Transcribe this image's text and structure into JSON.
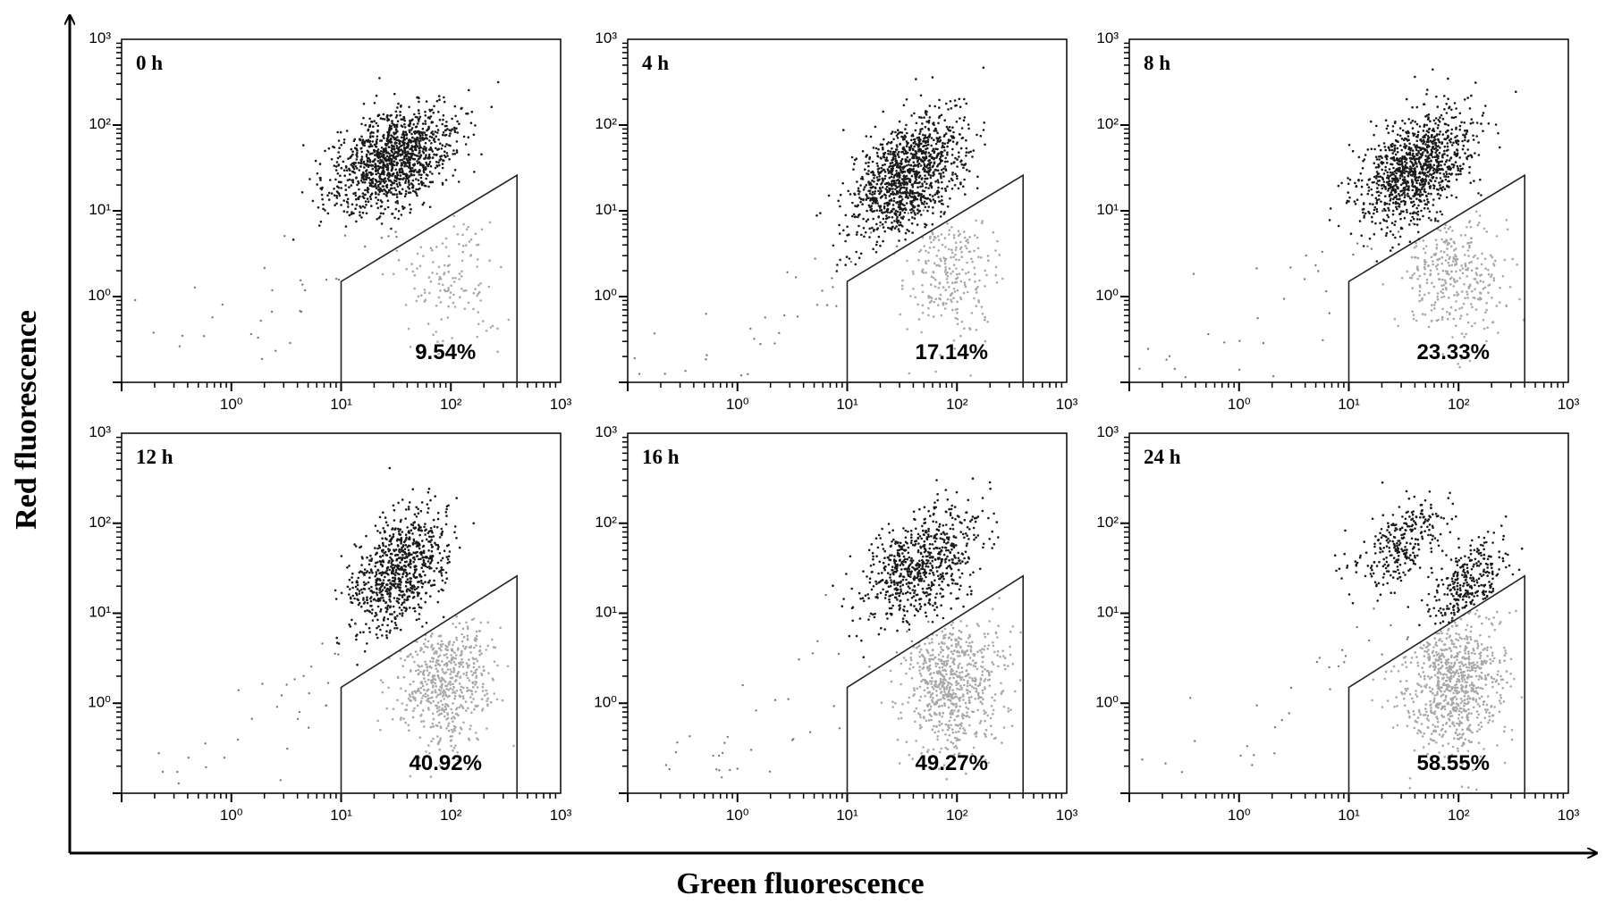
{
  "xlabel": "Green fluorescence",
  "ylabel": "Red fluorescence",
  "chart_data": [
    {
      "type": "scatter",
      "title": "0 h",
      "gate_percent_label": "9.54%",
      "gate_fraction": 0.0954,
      "xscale": "log",
      "yscale": "log",
      "xlim": [
        0.1,
        1000
      ],
      "ylim": [
        0.1,
        1000
      ],
      "xticks": [
        "10^0",
        "10^1",
        "10^2",
        "10^3"
      ],
      "yticks": [
        "10^0",
        "10^1",
        "10^2",
        "10^3"
      ],
      "populations": [
        {
          "shade": "dark",
          "center": [
            30,
            40
          ],
          "spread_decades": [
            0.28,
            0.3
          ]
        }
      ],
      "gate_vertices": [
        [
          10,
          1.5
        ],
        [
          10,
          0.1
        ],
        [
          400,
          0.1
        ],
        [
          400,
          26
        ]
      ]
    },
    {
      "type": "scatter",
      "title": "4 h",
      "gate_percent_label": "17.14%",
      "gate_fraction": 0.1714,
      "xscale": "log",
      "yscale": "log",
      "xlim": [
        0.1,
        1000
      ],
      "ylim": [
        0.1,
        1000
      ],
      "xticks": [
        "10^0",
        "10^1",
        "10^2",
        "10^3"
      ],
      "yticks": [
        "10^0",
        "10^1",
        "10^2",
        "10^3"
      ],
      "populations": [
        {
          "shade": "dark",
          "center": [
            35,
            25
          ],
          "spread_decades": [
            0.25,
            0.35
          ]
        }
      ],
      "gate_vertices": [
        [
          10,
          1.5
        ],
        [
          10,
          0.1
        ],
        [
          400,
          0.1
        ],
        [
          400,
          26
        ]
      ]
    },
    {
      "type": "scatter",
      "title": "8 h",
      "gate_percent_label": "23.33%",
      "gate_fraction": 0.2333,
      "xscale": "log",
      "yscale": "log",
      "xlim": [
        0.1,
        1000
      ],
      "ylim": [
        0.1,
        1000
      ],
      "xticks": [
        "10^0",
        "10^1",
        "10^2",
        "10^3"
      ],
      "yticks": [
        "10^0",
        "10^1",
        "10^2",
        "10^3"
      ],
      "populations": [
        {
          "shade": "dark",
          "center": [
            40,
            30
          ],
          "spread_decades": [
            0.25,
            0.33
          ]
        }
      ],
      "gate_vertices": [
        [
          10,
          1.5
        ],
        [
          10,
          0.1
        ],
        [
          400,
          0.1
        ],
        [
          400,
          26
        ]
      ]
    },
    {
      "type": "scatter",
      "title": "12 h",
      "gate_percent_label": "40.92%",
      "gate_fraction": 0.4092,
      "xscale": "log",
      "yscale": "log",
      "xlim": [
        0.1,
        1000
      ],
      "ylim": [
        0.1,
        1000
      ],
      "xticks": [
        "10^0",
        "10^1",
        "10^2",
        "10^3"
      ],
      "yticks": [
        "10^0",
        "10^1",
        "10^2",
        "10^3"
      ],
      "populations": [
        {
          "shade": "dark",
          "center": [
            35,
            30
          ],
          "spread_decades": [
            0.22,
            0.33
          ]
        }
      ],
      "gate_vertices": [
        [
          10,
          1.5
        ],
        [
          10,
          0.1
        ],
        [
          400,
          0.1
        ],
        [
          400,
          26
        ]
      ]
    },
    {
      "type": "scatter",
      "title": "16 h",
      "gate_percent_label": "49.27%",
      "gate_fraction": 0.4927,
      "xscale": "log",
      "yscale": "log",
      "xlim": [
        0.1,
        1000
      ],
      "ylim": [
        0.1,
        1000
      ],
      "xticks": [
        "10^0",
        "10^1",
        "10^2",
        "10^3"
      ],
      "yticks": [
        "10^0",
        "10^1",
        "10^2",
        "10^3"
      ],
      "populations": [
        {
          "shade": "dark",
          "center": [
            45,
            35
          ],
          "spread_decades": [
            0.27,
            0.33
          ]
        }
      ],
      "gate_vertices": [
        [
          10,
          1.5
        ],
        [
          10,
          0.1
        ],
        [
          400,
          0.1
        ],
        [
          400,
          26
        ]
      ]
    },
    {
      "type": "scatter",
      "title": "24 h",
      "gate_percent_label": "58.55%",
      "gate_fraction": 0.5855,
      "xscale": "log",
      "yscale": "log",
      "xlim": [
        0.1,
        1000
      ],
      "ylim": [
        0.1,
        1000
      ],
      "xticks": [
        "10^0",
        "10^1",
        "10^2",
        "10^3"
      ],
      "yticks": [
        "10^0",
        "10^1",
        "10^2",
        "10^3"
      ],
      "populations": [
        {
          "shade": "dark",
          "center": [
            30,
            60
          ],
          "spread_decades": [
            0.2,
            0.25
          ]
        },
        {
          "shade": "dark",
          "center": [
            120,
            20
          ],
          "spread_decades": [
            0.17,
            0.25
          ]
        }
      ],
      "gate_vertices": [
        [
          10,
          1.5
        ],
        [
          10,
          0.1
        ],
        [
          400,
          0.1
        ],
        [
          400,
          26
        ]
      ]
    }
  ],
  "colors": {
    "dark_points": "#1a1a1a",
    "gated_points": "#a8a8a8",
    "axes": "#000000"
  }
}
